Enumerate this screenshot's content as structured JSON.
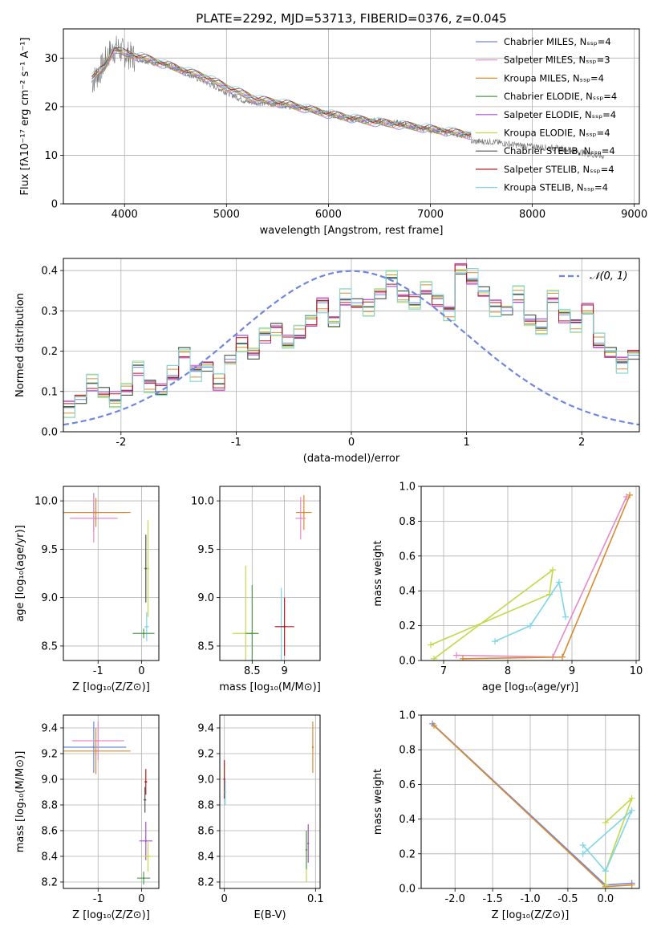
{
  "figure": {
    "title": "PLATE=2292, MJD=53713, FIBERID=0376, z=0.045",
    "background": "#ffffff"
  },
  "colors": [
    "#6f86df",
    "#e58ac9",
    "#d98b2e",
    "#4f9a4f",
    "#a64fd1",
    "#c4d94a",
    "#555555",
    "#b31b1b",
    "#7fd6e6"
  ],
  "chart_data": [
    {
      "id": "spectrum",
      "type": "line",
      "xlabel": "wavelength [Angstrom, rest frame]",
      "ylabel": "Flux [fλ10⁻¹⁷ erg cm⁻² s⁻¹ A⁻¹]",
      "xlim": [
        3400,
        9050
      ],
      "ylim": [
        0,
        36
      ],
      "xticks": [
        4000,
        5000,
        6000,
        7000,
        8000,
        9000
      ],
      "yticks": [
        0,
        10,
        20,
        30
      ],
      "grid": true,
      "legend_position": "top-right",
      "legend": [
        "Chabrier MILES, Nₛₛₚ=4",
        "Salpeter MILES, Nₛₛₚ=3",
        "Kroupa MILES, Nₛₛₚ=4",
        "Chabrier ELODIE, Nₛₛₚ=4",
        "Salpeter ELODIE, Nₛₛₚ=4",
        "Kroupa ELODIE, Nₛₛₚ=4",
        "Chabrier STELIB, Nₛₛₚ=4",
        "Salpeter STELIB, Nₛₛₚ=4",
        "Kroupa STELIB, Nₛₛₚ=4"
      ],
      "legend_colors": [
        "#6f86df",
        "#e58ac9",
        "#d98b2e",
        "#4f9a4f",
        "#a64fd1",
        "#c4d94a",
        "#555555",
        "#b31b1b",
        "#7fd6e6"
      ],
      "data_x": [
        3680,
        3750,
        3850,
        3930,
        4000,
        4100,
        4300,
        4500,
        4800,
        5000,
        5200,
        5500,
        5800,
        6000,
        6200,
        6500,
        6700,
        6900,
        7100,
        7300,
        7400
      ],
      "data_y": [
        25,
        27,
        31,
        32,
        31,
        30,
        29,
        28,
        25,
        23,
        21,
        20.5,
        19.5,
        18.5,
        17.5,
        17,
        16.5,
        15.5,
        15,
        14.2,
        14
      ],
      "model_x": [
        3680,
        3800,
        3900,
        4000,
        4200,
        4500,
        4800,
        5000,
        5300,
        5600,
        6000,
        6400,
        6800,
        7200,
        7400
      ],
      "model_y": [
        26,
        28,
        32,
        31,
        30,
        28,
        26,
        24,
        21.5,
        20.5,
        18.5,
        17,
        16,
        14.8,
        14.2
      ],
      "noise_x": [
        7600,
        7800,
        8000,
        8200,
        8400,
        8500,
        8600,
        8700
      ],
      "noise_y": [
        12.8,
        12.2,
        11.8,
        11.5,
        11,
        10.5,
        10,
        9.8
      ]
    },
    {
      "id": "residuals",
      "type": "line",
      "xlabel": "(data-model)/error",
      "ylabel": "Normed distribution",
      "xlim": [
        -2.5,
        2.5
      ],
      "ylim": [
        0,
        0.43
      ],
      "xticks": [
        -2,
        -1,
        0,
        1,
        2
      ],
      "yticks": [
        0.0,
        0.1,
        0.2,
        0.3,
        0.4
      ],
      "grid": true,
      "legend_position": "top-right",
      "gauss_label": "𝒩(0, 1)",
      "gauss_color": "#6f86df",
      "bin_start": -2.5,
      "bin_width": 0.1,
      "hist_values": [
        0.06,
        0.08,
        0.12,
        0.1,
        0.08,
        0.1,
        0.16,
        0.12,
        0.1,
        0.14,
        0.2,
        0.15,
        0.16,
        0.12,
        0.18,
        0.22,
        0.19,
        0.24,
        0.26,
        0.22,
        0.24,
        0.28,
        0.32,
        0.27,
        0.33,
        0.32,
        0.31,
        0.34,
        0.38,
        0.34,
        0.32,
        0.35,
        0.33,
        0.3,
        0.4,
        0.38,
        0.35,
        0.31,
        0.3,
        0.34,
        0.28,
        0.26,
        0.33,
        0.29,
        0.27,
        0.3,
        0.22,
        0.2,
        0.17,
        0.19,
        0.13,
        0.12,
        0.17,
        0.15,
        0.1,
        0.08,
        0.09,
        0.09,
        0.06,
        0.07,
        0.05,
        0.06,
        0.05,
        0.04,
        0.04,
        0.03,
        0.03,
        0.02,
        0.02,
        0.01
      ],
      "hist_offsets": [
        0.0,
        0.02,
        -0.015,
        0.01,
        -0.02,
        0.025,
        -0.01,
        0.015,
        -0.025
      ]
    },
    {
      "id": "age-vs-z",
      "type": "scatter",
      "xlabel": "Z [log₁₀(Z/Z⊙)]",
      "ylabel": "age  [log₁₀(age/yr)]",
      "xlim": [
        -1.8,
        0.4
      ],
      "ylim": [
        8.35,
        10.15
      ],
      "xticks": [
        -1,
        0
      ],
      "yticks": [
        8.5,
        9.0,
        9.5,
        10.0
      ],
      "grid": true,
      "points": [
        {
          "x": -1.1,
          "y": 9.88,
          "xerr": 0.75,
          "yerr": 0.2,
          "series": 0
        },
        {
          "x": -1.1,
          "y": 9.82,
          "xerr": 0.55,
          "yerr": 0.25,
          "series": 1
        },
        {
          "x": -1.05,
          "y": 9.88,
          "xerr": 0.8,
          "yerr": 0.15,
          "series": 2
        },
        {
          "x": 0.1,
          "y": 9.3,
          "xerr": 0.03,
          "yerr": 0.35,
          "series": 6
        },
        {
          "x": 0.15,
          "y": 9.3,
          "xerr": 0.03,
          "yerr": 0.5,
          "series": 5
        },
        {
          "x": 0.12,
          "y": 8.7,
          "xerr": 0.05,
          "yerr": 0.15,
          "series": 8
        },
        {
          "x": 0.05,
          "y": 8.63,
          "xerr": 0.25,
          "yerr": 0.05,
          "series": 3
        }
      ]
    },
    {
      "id": "age-vs-mass",
      "type": "scatter",
      "xlabel": "mass [log₁₀(M/M⊙)]",
      "ylabel": "",
      "xlim": [
        8.0,
        9.55
      ],
      "ylim": [
        8.35,
        10.15
      ],
      "xticks": [
        8.5,
        9.0
      ],
      "yticks": [
        8.5,
        9.0,
        9.5,
        10.0
      ],
      "grid": true,
      "points": [
        {
          "x": 8.4,
          "y": 8.63,
          "xerr": 0.2,
          "yerr": 0.7,
          "series": 5
        },
        {
          "x": 8.5,
          "y": 8.63,
          "xerr": 0.1,
          "yerr": 0.5,
          "series": 3
        },
        {
          "x": 8.95,
          "y": 8.7,
          "xerr": 0.08,
          "yerr": 0.4,
          "series": 8
        },
        {
          "x": 9.0,
          "y": 8.7,
          "xerr": 0.15,
          "yerr": 0.3,
          "series": 7
        },
        {
          "x": 9.3,
          "y": 9.88,
          "xerr": 0.12,
          "yerr": 0.18,
          "series": 2
        },
        {
          "x": 9.25,
          "y": 9.82,
          "xerr": 0.08,
          "yerr": 0.22,
          "series": 1
        }
      ]
    },
    {
      "id": "weight-vs-age",
      "type": "line",
      "xlabel": "age  [log₁₀(age/yr)]",
      "ylabel": "mass weight",
      "xlim": [
        6.65,
        10.05
      ],
      "ylim": [
        0,
        1.0
      ],
      "xticks": [
        7,
        8,
        9,
        10
      ],
      "yticks": [
        0.0,
        0.2,
        0.4,
        0.6,
        0.8,
        1.0
      ],
      "grid": true,
      "series": [
        {
          "series": 5,
          "x": [
            6.8,
            8.65,
            8.7,
            6.85
          ],
          "y": [
            0.09,
            0.38,
            0.52,
            0.01
          ]
        },
        {
          "series": 8,
          "x": [
            7.8,
            8.35,
            8.8,
            8.9
          ],
          "y": [
            0.11,
            0.2,
            0.45,
            0.25
          ]
        },
        {
          "series": 1,
          "x": [
            7.2,
            8.7,
            9.85
          ],
          "y": [
            0.03,
            0.02,
            0.94
          ]
        },
        {
          "series": 2,
          "x": [
            7.3,
            8.85,
            9.9
          ],
          "y": [
            0.01,
            0.02,
            0.95
          ]
        }
      ]
    },
    {
      "id": "mass-vs-z",
      "type": "scatter",
      "xlabel": "Z [log₁₀(Z/Z⊙)]",
      "ylabel": "mass [log₁₀(M/M⊙)]",
      "xlim": [
        -1.8,
        0.4
      ],
      "ylim": [
        8.15,
        9.5
      ],
      "xticks": [
        -1,
        0
      ],
      "yticks": [
        8.2,
        8.4,
        8.6,
        8.8,
        9.0,
        9.2,
        9.4
      ],
      "grid": true,
      "points": [
        {
          "x": -1.1,
          "y": 9.25,
          "xerr": 0.75,
          "yerr": 0.2,
          "series": 0
        },
        {
          "x": -1.0,
          "y": 9.3,
          "xerr": 0.6,
          "yerr": 0.15,
          "series": 1
        },
        {
          "x": -1.05,
          "y": 9.22,
          "xerr": 0.8,
          "yerr": 0.18,
          "series": 2
        },
        {
          "x": 0.1,
          "y": 8.98,
          "xerr": 0.03,
          "yerr": 0.1,
          "series": 7
        },
        {
          "x": 0.08,
          "y": 8.84,
          "xerr": 0.03,
          "yerr": 0.1,
          "series": 6
        },
        {
          "x": 0.1,
          "y": 8.52,
          "xerr": 0.15,
          "yerr": 0.15,
          "series": 4
        },
        {
          "x": 0.15,
          "y": 8.4,
          "xerr": 0.1,
          "yerr": 0.12,
          "series": 5
        },
        {
          "x": 0.05,
          "y": 8.23,
          "xerr": 0.15,
          "yerr": 0.05,
          "series": 3
        }
      ]
    },
    {
      "id": "mass-vs-ebv",
      "type": "scatter",
      "xlabel": "E(B-V)",
      "ylabel": "",
      "xlim": [
        -0.005,
        0.105
      ],
      "ylim": [
        8.15,
        9.5
      ],
      "xticks": [
        0.0,
        0.1
      ],
      "yticks": [
        8.2,
        8.4,
        8.6,
        8.8,
        9.0,
        9.2,
        9.4
      ],
      "grid": true,
      "points": [
        {
          "x": 0.0,
          "y": 9.0,
          "yerr": 0.15,
          "series": 7
        },
        {
          "x": 0.001,
          "y": 8.9,
          "yerr": 0.1,
          "series": 8
        },
        {
          "x": 0.09,
          "y": 8.4,
          "yerr": 0.2,
          "series": 5
        },
        {
          "x": 0.09,
          "y": 8.45,
          "yerr": 0.15,
          "series": 3
        },
        {
          "x": 0.092,
          "y": 8.5,
          "yerr": 0.15,
          "series": 4
        },
        {
          "x": 0.097,
          "y": 9.25,
          "yerr": 0.2,
          "series": 2
        }
      ]
    },
    {
      "id": "weight-vs-z",
      "type": "line",
      "xlabel": "Z [log₁₀(Z/Z⊙)]",
      "ylabel": "mass weight",
      "xlim": [
        -2.45,
        0.45
      ],
      "ylim": [
        0,
        1.0
      ],
      "xticks": [
        -2.0,
        -1.5,
        -1.0,
        -0.5,
        0.0
      ],
      "yticks": [
        0.0,
        0.2,
        0.4,
        0.6,
        0.8,
        1.0
      ],
      "grid": true,
      "series": [
        {
          "series": 0,
          "x": [
            -2.3,
            0.0,
            0.35
          ],
          "y": [
            0.95,
            0.02,
            0.03
          ]
        },
        {
          "series": 2,
          "x": [
            -2.28,
            0.0,
            0.35
          ],
          "y": [
            0.94,
            0.01,
            0.02
          ]
        },
        {
          "series": 5,
          "x": [
            0.0,
            0.35,
            0.0,
            0.0
          ],
          "y": [
            0.38,
            0.52,
            0.1,
            0.02
          ]
        },
        {
          "series": 8,
          "x": [
            -0.3,
            0.0,
            0.35,
            -0.3
          ],
          "y": [
            0.25,
            0.1,
            0.45,
            0.2
          ]
        }
      ]
    }
  ]
}
